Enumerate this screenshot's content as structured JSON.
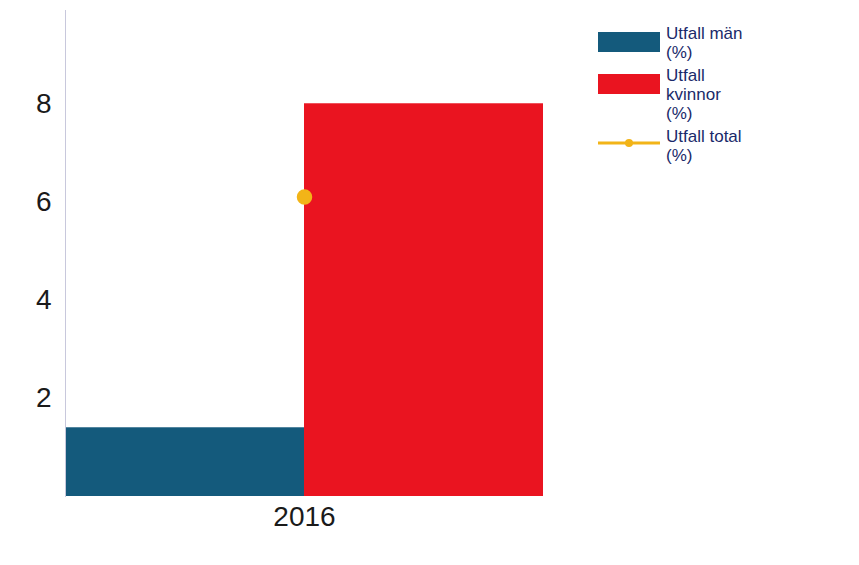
{
  "chart_data": {
    "type": "bar",
    "categories": [
      "2016"
    ],
    "series": [
      {
        "name": "Utfall män (%)",
        "color": "#145a7c",
        "values": [
          1.4
        ]
      },
      {
        "name": "Utfall kvinnor (%)",
        "color": "#ea1420",
        "values": [
          8.0
        ]
      },
      {
        "name": "Utfall total (%)",
        "color": "#f2b418",
        "type": "line",
        "marker": "circle",
        "values": [
          6.1
        ]
      }
    ],
    "ylim": [
      0,
      9.9
    ],
    "yticks": [
      2,
      4,
      6,
      8
    ],
    "legend": "top-right"
  }
}
